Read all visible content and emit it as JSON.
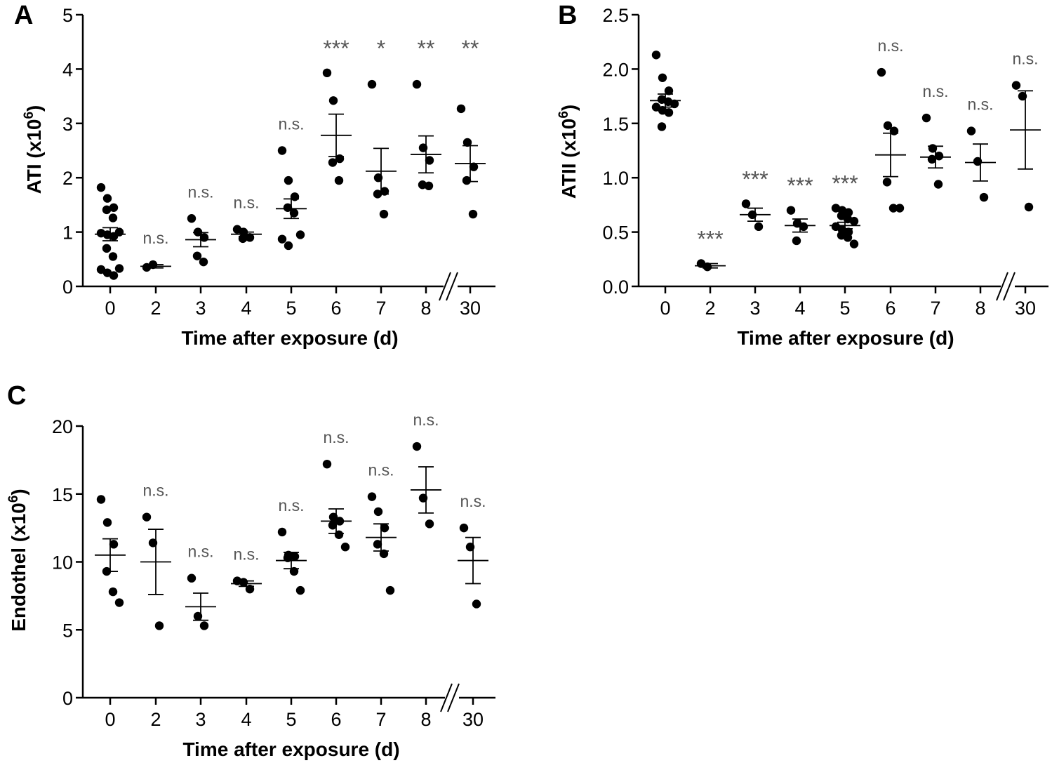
{
  "figure": {
    "panels": [
      "A",
      "B",
      "C"
    ]
  },
  "chart_data": [
    {
      "panel": "A",
      "type": "scatter",
      "xlabel": "Time after exposure (d)",
      "ylabel_main": "ATI (x10",
      "ylabel_sup": "6",
      "ylabel_close": ")",
      "ylim": [
        0,
        5
      ],
      "yticks": [
        "0",
        "1",
        "2",
        "3",
        "4",
        "5"
      ],
      "categories": [
        "0",
        "2",
        "3",
        "4",
        "5",
        "6",
        "7",
        "8",
        "30"
      ],
      "axis_break": "between 8 and 30",
      "groups": [
        {
          "day": "0",
          "points": [
            1.82,
            1.62,
            1.45,
            1.41,
            1.26,
            1.0,
            0.98,
            0.95,
            0.92,
            0.7,
            0.55,
            0.33,
            0.31,
            0.25,
            0.2
          ],
          "mean": 0.96,
          "sem": 0.12,
          "sig": ""
        },
        {
          "day": "2",
          "points": [
            0.35,
            0.4
          ],
          "mean": 0.37,
          "sem": 0.03,
          "sig": "n.s."
        },
        {
          "day": "3",
          "points": [
            1.25,
            1.0,
            0.9,
            0.56,
            0.45
          ],
          "mean": 0.86,
          "sem": 0.13,
          "sig": "n.s."
        },
        {
          "day": "4",
          "points": [
            1.05,
            1.0,
            0.9,
            0.88
          ],
          "mean": 0.96,
          "sem": 0.04,
          "sig": "n.s."
        },
        {
          "day": "5",
          "points": [
            2.5,
            1.95,
            1.65,
            1.45,
            1.35,
            0.95,
            0.87,
            0.75
          ],
          "mean": 1.43,
          "sem": 0.18,
          "sig": "n.s."
        },
        {
          "day": "6",
          "points": [
            3.93,
            3.42,
            2.35,
            2.28,
            1.95
          ],
          "mean": 2.78,
          "sem": 0.39,
          "sig": "***"
        },
        {
          "day": "7",
          "points": [
            3.72,
            2.0,
            1.75,
            1.7,
            1.33
          ],
          "mean": 2.12,
          "sem": 0.42,
          "sig": "*"
        },
        {
          "day": "8",
          "points": [
            3.72,
            2.55,
            2.32,
            1.87,
            1.85
          ],
          "mean": 2.43,
          "sem": 0.34,
          "sig": "**"
        },
        {
          "day": "30",
          "points": [
            3.27,
            2.65,
            2.2,
            1.95,
            1.33
          ],
          "mean": 2.26,
          "sem": 0.33,
          "sig": "**"
        }
      ]
    },
    {
      "panel": "B",
      "type": "scatter",
      "xlabel": "Time after exposure (d)",
      "ylabel_main": "ATII (x10",
      "ylabel_sup": "6",
      "ylabel_close": ")",
      "ylim": [
        0,
        2.5
      ],
      "yticks": [
        "0.0",
        "0.5",
        "1.0",
        "1.5",
        "2.0",
        "2.5"
      ],
      "categories": [
        "0",
        "2",
        "3",
        "4",
        "5",
        "6",
        "7",
        "8",
        "30"
      ],
      "axis_break": "between 8 and 30",
      "groups": [
        {
          "day": "0",
          "points": [
            2.13,
            1.92,
            1.8,
            1.72,
            1.7,
            1.68,
            1.65,
            1.62,
            1.6,
            1.47
          ],
          "mean": 1.71,
          "sem": 0.06,
          "sig": ""
        },
        {
          "day": "2",
          "points": [
            0.21,
            0.18
          ],
          "mean": 0.19,
          "sem": 0.02,
          "sig": "***"
        },
        {
          "day": "3",
          "points": [
            0.76,
            0.66,
            0.55
          ],
          "mean": 0.66,
          "sem": 0.06,
          "sig": "***"
        },
        {
          "day": "4",
          "points": [
            0.7,
            0.58,
            0.55,
            0.42
          ],
          "mean": 0.56,
          "sem": 0.06,
          "sig": "***"
        },
        {
          "day": "5",
          "points": [
            0.72,
            0.7,
            0.68,
            0.65,
            0.62,
            0.6,
            0.55,
            0.52,
            0.5,
            0.47,
            0.45,
            0.39
          ],
          "mean": 0.56,
          "sem": 0.03,
          "sig": "***"
        },
        {
          "day": "6",
          "points": [
            1.97,
            1.48,
            1.43,
            0.96,
            0.72,
            0.72
          ],
          "mean": 1.21,
          "sem": 0.2,
          "sig": "n.s."
        },
        {
          "day": "7",
          "points": [
            1.55,
            1.27,
            1.2,
            1.17,
            0.94
          ],
          "mean": 1.19,
          "sem": 0.1,
          "sig": "n.s."
        },
        {
          "day": "8",
          "points": [
            1.43,
            1.15,
            0.82
          ],
          "mean": 1.14,
          "sem": 0.17,
          "sig": "n.s."
        },
        {
          "day": "30",
          "points": [
            1.85,
            1.75,
            0.73
          ],
          "mean": 1.44,
          "sem": 0.36,
          "sig": "n.s."
        }
      ]
    },
    {
      "panel": "C",
      "type": "scatter",
      "xlabel": "Time after exposure (d)",
      "ylabel_main": "Endothel (x10",
      "ylabel_sup": "6",
      "ylabel_close": ")",
      "ylim": [
        0,
        20
      ],
      "yticks": [
        "0",
        "5",
        "10",
        "15",
        "20"
      ],
      "categories": [
        "0",
        "2",
        "3",
        "4",
        "5",
        "6",
        "7",
        "8",
        "30"
      ],
      "axis_break": "between 8 and 30",
      "groups": [
        {
          "day": "0",
          "points": [
            14.6,
            12.9,
            11.3,
            9.3,
            7.8,
            7.0
          ],
          "mean": 10.5,
          "sem": 1.2,
          "sig": ""
        },
        {
          "day": "2",
          "points": [
            13.3,
            11.4,
            5.3
          ],
          "mean": 10.0,
          "sem": 2.4,
          "sig": "n.s."
        },
        {
          "day": "3",
          "points": [
            8.8,
            6.0,
            5.3
          ],
          "mean": 6.7,
          "sem": 1.0,
          "sig": "n.s."
        },
        {
          "day": "4",
          "points": [
            8.6,
            8.5,
            8.0
          ],
          "mean": 8.4,
          "sem": 0.2,
          "sig": "n.s."
        },
        {
          "day": "5",
          "points": [
            12.2,
            10.5,
            10.4,
            10.3,
            9.3,
            7.9
          ],
          "mean": 10.1,
          "sem": 0.6,
          "sig": "n.s."
        },
        {
          "day": "6",
          "points": [
            17.2,
            13.3,
            13.0,
            12.7,
            12.0,
            11.1
          ],
          "mean": 13.0,
          "sem": 0.9,
          "sig": "n.s."
        },
        {
          "day": "7",
          "points": [
            14.8,
            13.7,
            12.5,
            11.3,
            10.6,
            7.9
          ],
          "mean": 11.8,
          "sem": 1.0,
          "sig": "n.s."
        },
        {
          "day": "8",
          "points": [
            18.5,
            14.7,
            12.8
          ],
          "mean": 15.3,
          "sem": 1.7,
          "sig": "n.s."
        },
        {
          "day": "30",
          "points": [
            12.5,
            11.1,
            6.9
          ],
          "mean": 10.1,
          "sem": 1.7,
          "sig": "n.s."
        }
      ]
    }
  ]
}
